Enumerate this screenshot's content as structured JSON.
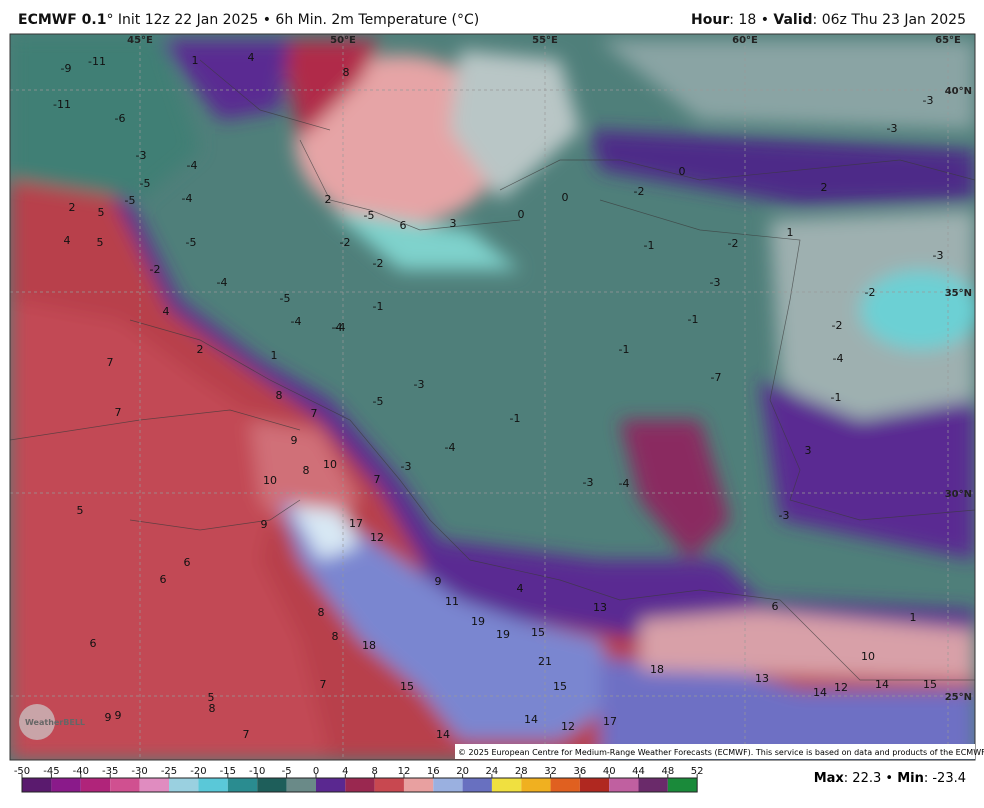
{
  "header": {
    "model": "ECMWF 0.1",
    "info": "° Init 12z 22 Jan 2025 • 6h Min. 2m Temperature (°C)",
    "hour_label": "Hour",
    "hour": ": 18 • ",
    "valid_label": "Valid",
    "valid": ": 06z Thu 23 Jan 2025"
  },
  "map": {
    "lon_labels": [
      "45°E",
      "50°E",
      "55°E",
      "60°E",
      "65°E"
    ],
    "lat_labels": [
      "40°N",
      "35°N",
      "30°N",
      "25°N"
    ],
    "values": [
      -9,
      -11,
      1,
      4,
      8,
      -11,
      -6,
      -3,
      -4,
      -5,
      -4,
      2,
      5,
      -5,
      4,
      5,
      -5,
      -2,
      -4,
      -5,
      4,
      -4,
      -4,
      2,
      1,
      7,
      7,
      8,
      7,
      9,
      8,
      10,
      10,
      7,
      9,
      17,
      12,
      5,
      6,
      6,
      6,
      9,
      11,
      4,
      19,
      19,
      15,
      13,
      8,
      8,
      18,
      21,
      15,
      7,
      5,
      8,
      9,
      9,
      7,
      14,
      14,
      12,
      17,
      15,
      18,
      13,
      14,
      12,
      14,
      15,
      10,
      1,
      6,
      3,
      -3,
      -7,
      -1,
      -1,
      -3,
      -4,
      -1,
      -4,
      -3,
      -3,
      -5,
      -1,
      -4,
      -2,
      -2,
      2,
      -5,
      6,
      3,
      0,
      0,
      -2,
      -1,
      -2,
      -3,
      1,
      2,
      -2,
      -2,
      -4,
      -1,
      -3,
      -3,
      -3,
      0
    ],
    "copyright": "© 2025 European Centre for Medium-Range Weather Forecasts (ECMWF). This service is based on data and products of the ECMWF.",
    "logo": "WeatherBELL"
  },
  "colorbar": {
    "ticks": [
      -50,
      -45,
      -40,
      -35,
      -30,
      -25,
      -20,
      -15,
      -10,
      -5,
      0,
      4,
      8,
      12,
      16,
      20,
      24,
      28,
      32,
      36,
      40,
      44,
      48,
      52
    ]
  },
  "footer": {
    "max_label": "Max",
    "max": ": 22.3 • ",
    "min_label": "Min",
    "min": ": -23.4"
  }
}
